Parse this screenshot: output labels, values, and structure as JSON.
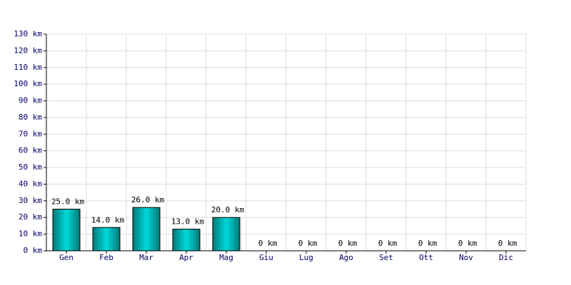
{
  "chart_data": {
    "type": "bar",
    "categories": [
      "Gen",
      "Feb",
      "Mar",
      "Apr",
      "Mag",
      "Giu",
      "Lug",
      "Ago",
      "Set",
      "Ott",
      "Nov",
      "Dic"
    ],
    "values": [
      25,
      14,
      26,
      13,
      20,
      0,
      0,
      0,
      0,
      0,
      0,
      0
    ],
    "value_labels": [
      "25.0 km",
      "14.0 km",
      "26.0 km",
      "13.0 km",
      "20.0 km",
      "0 km",
      "0 km",
      "0 km",
      "0 km",
      "0 km",
      "0 km",
      "0 km"
    ],
    "color": "#00d8d8",
    "ylim": [
      0,
      130
    ],
    "yticks": [
      {
        "value": 0,
        "label": "0 km"
      },
      {
        "value": 10,
        "label": "10 km"
      },
      {
        "value": 20,
        "label": "20 km"
      },
      {
        "value": 30,
        "label": "30 km"
      },
      {
        "value": 40,
        "label": "40 km"
      },
      {
        "value": 50,
        "label": "50 km"
      },
      {
        "value": 60,
        "label": "60 km"
      },
      {
        "value": 70,
        "label": "70 km"
      },
      {
        "value": 80,
        "label": "80 km"
      },
      {
        "value": 90,
        "label": "90 km"
      },
      {
        "value": 100,
        "label": "100 km"
      },
      {
        "value": 110,
        "label": "110 km"
      },
      {
        "value": 120,
        "label": "120 km"
      },
      {
        "value": 130,
        "label": "130 km"
      }
    ],
    "grid": true
  }
}
